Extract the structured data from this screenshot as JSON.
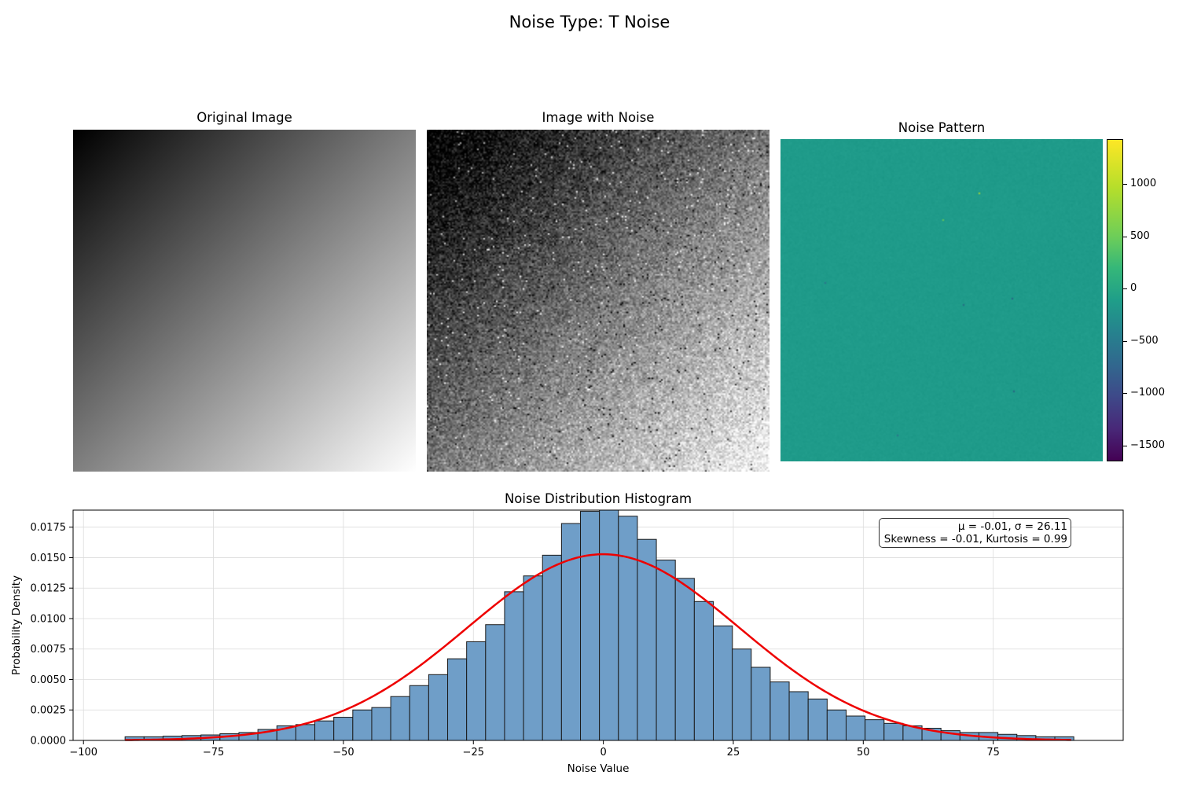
{
  "figure": {
    "title": "Noise Type: T Noise"
  },
  "panels": {
    "original_title": "Original Image",
    "noisy_title": "Image with Noise",
    "pattern_title": "Noise Pattern",
    "hist_title": "Noise Distribution Histogram"
  },
  "colorbar": {
    "range": [
      -1650,
      1430
    ],
    "ticks": [
      1000,
      500,
      0,
      -500,
      -1000,
      -1500
    ],
    "tick_labels": [
      "1000",
      "500",
      "0",
      "−500",
      "−1000",
      "−1500"
    ],
    "colormap": "viridis"
  },
  "stats": {
    "line1": "μ = -0.01, σ = 26.11",
    "line2": "Skewness = -0.01, Kurtosis = 0.99"
  },
  "chart_data": {
    "type": "bar",
    "title": "Noise Distribution Histogram",
    "xlabel": "Noise Value",
    "ylabel": "Probability Density",
    "xlim": [
      -102,
      100
    ],
    "ylim": [
      0,
      0.0189
    ],
    "xticks": [
      -100,
      -75,
      -50,
      -25,
      0,
      25,
      50,
      75
    ],
    "xtick_labels": [
      "−100",
      "−75",
      "−50",
      "−25",
      "0",
      "25",
      "50",
      "75"
    ],
    "yticks": [
      0,
      0.0025,
      0.005,
      0.0075,
      0.01,
      0.0125,
      0.015,
      0.0175
    ],
    "ytick_labels": [
      "0.0000",
      "0.0025",
      "0.0050",
      "0.0075",
      "0.0100",
      "0.0125",
      "0.0150",
      "0.0175"
    ],
    "grid": true,
    "bins": {
      "start": -92,
      "width": 3.65,
      "values": [
        0.0003,
        0.0003,
        0.00035,
        0.0004,
        0.00045,
        0.00055,
        0.00065,
        0.0009,
        0.0012,
        0.0013,
        0.0016,
        0.0019,
        0.0025,
        0.0027,
        0.0036,
        0.0045,
        0.0054,
        0.0067,
        0.0081,
        0.0095,
        0.0122,
        0.0135,
        0.0152,
        0.0178,
        0.0188,
        0.0189,
        0.0184,
        0.0165,
        0.0148,
        0.0133,
        0.0114,
        0.0094,
        0.0075,
        0.006,
        0.0048,
        0.004,
        0.0034,
        0.0025,
        0.002,
        0.0017,
        0.0014,
        0.0012,
        0.001,
        0.0008,
        0.00065,
        0.00065,
        0.0005,
        0.0004,
        0.0003,
        0.0003
      ],
      "color": "#6f9ec8",
      "edge_color": "#1a1a1a"
    },
    "fit_curve": {
      "type": "normal_pdf",
      "mu": -0.01,
      "sigma": 26.11,
      "x_range": [
        -92,
        90
      ],
      "color": "#ee0000"
    }
  }
}
